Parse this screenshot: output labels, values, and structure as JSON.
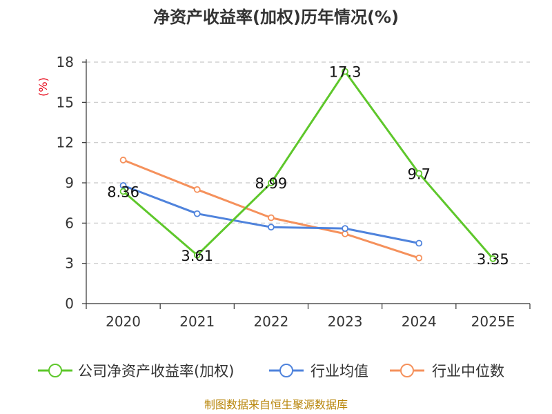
{
  "chart_data": {
    "type": "line",
    "title": "净资产收益率(加权)历年情况(%)",
    "ylabel": "(%)",
    "xlabel": "",
    "categories": [
      "2020",
      "2021",
      "2022",
      "2023",
      "2024",
      "2025E"
    ],
    "ylim": [
      0,
      18
    ],
    "yticks": [
      0,
      3,
      6,
      9,
      12,
      15,
      18
    ],
    "grid": true,
    "legend_position": "bottom",
    "series": [
      {
        "name": "公司净资产收益率(加权)",
        "color": "#5ec72b",
        "values": [
          8.36,
          3.61,
          8.99,
          17.3,
          9.7,
          3.35
        ],
        "labels": [
          "8.36",
          "3.61",
          "8.99",
          "17.3",
          "9.7",
          "3.35"
        ]
      },
      {
        "name": "行业均值",
        "color": "#4f83dc",
        "values": [
          8.8,
          6.7,
          5.7,
          5.6,
          4.5,
          null
        ]
      },
      {
        "name": "行业中位数",
        "color": "#f5915c",
        "values": [
          10.7,
          8.5,
          6.4,
          5.2,
          3.4,
          null
        ]
      }
    ],
    "source": "制图数据来自恒生聚源数据库"
  }
}
